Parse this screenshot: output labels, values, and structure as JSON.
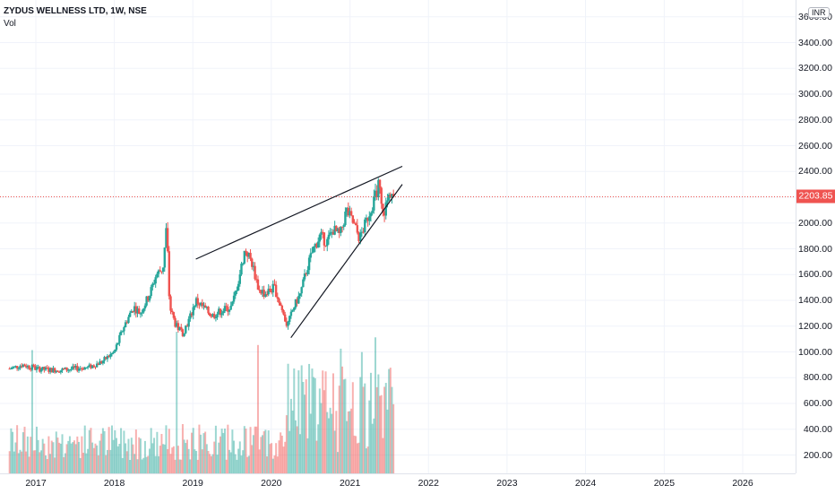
{
  "legend": {
    "symbol": "ZYDUS WELLNESS LTD, 1W, NSE",
    "volume_label": "Vol"
  },
  "currency": "INR",
  "last_price_label": "2203.85",
  "colors": {
    "up": "#26a69a",
    "down": "#ef5350",
    "last_line": "#ef5350",
    "grid": "#f0f3fa",
    "trendline": "#131722"
  },
  "chart_data": {
    "type": "candlestick",
    "title": "ZYDUS WELLNESS LTD, 1W, NSE",
    "y_ticks": [
      "200.00",
      "400.00",
      "600.00",
      "800.00",
      "1000.00",
      "1200.00",
      "1400.00",
      "1600.00",
      "1800.00",
      "2000.00",
      "2200.00",
      "2400.00",
      "2600.00",
      "2800.00",
      "3000.00",
      "3200.00",
      "3400.00",
      "3600.00"
    ],
    "ylim": [
      0,
      3650
    ],
    "x_ticks": [
      "2017",
      "2018",
      "2019",
      "2020",
      "2021",
      "2022",
      "2023",
      "2024",
      "2025",
      "2026"
    ],
    "last_price": 2203.85,
    "price_series": [
      [
        "2016-09-01",
        870
      ],
      [
        "2016-11-01",
        900
      ],
      [
        "2017-01-01",
        870
      ],
      [
        "2017-03-01",
        860
      ],
      [
        "2017-05-01",
        860
      ],
      [
        "2017-07-01",
        870
      ],
      [
        "2017-09-01",
        880
      ],
      [
        "2017-11-01",
        920
      ],
      [
        "2018-01-01",
        1000
      ],
      [
        "2018-02-15",
        1200
      ],
      [
        "2018-04-01",
        1350
      ],
      [
        "2018-05-01",
        1300
      ],
      [
        "2018-06-15",
        1450
      ],
      [
        "2018-07-15",
        1600
      ],
      [
        "2018-08-15",
        1650
      ],
      [
        "2018-09-01",
        1980
      ],
      [
        "2018-09-15",
        1350
      ],
      [
        "2018-10-15",
        1200
      ],
      [
        "2018-11-15",
        1150
      ],
      [
        "2018-12-15",
        1250
      ],
      [
        "2019-01-15",
        1400
      ],
      [
        "2019-02-15",
        1350
      ],
      [
        "2019-04-01",
        1280
      ],
      [
        "2019-05-15",
        1320
      ],
      [
        "2019-07-01",
        1350
      ],
      [
        "2019-08-01",
        1550
      ],
      [
        "2019-09-01",
        1800
      ],
      [
        "2019-10-01",
        1700
      ],
      [
        "2019-11-01",
        1500
      ],
      [
        "2019-12-01",
        1450
      ],
      [
        "2020-01-15",
        1500
      ],
      [
        "2020-02-15",
        1350
      ],
      [
        "2020-03-15",
        1200
      ],
      [
        "2020-04-15",
        1350
      ],
      [
        "2020-05-15",
        1450
      ],
      [
        "2020-06-15",
        1650
      ],
      [
        "2020-07-15",
        1800
      ],
      [
        "2020-08-15",
        1900
      ],
      [
        "2020-09-15",
        1850
      ],
      [
        "2020-10-15",
        1950
      ],
      [
        "2020-11-15",
        1900
      ],
      [
        "2020-12-15",
        2100
      ],
      [
        "2021-01-15",
        2000
      ],
      [
        "2021-02-15",
        1880
      ],
      [
        "2021-03-15",
        2000
      ],
      [
        "2021-04-15",
        2150
      ],
      [
        "2021-05-15",
        2300
      ],
      [
        "2021-06-01",
        2050
      ],
      [
        "2021-06-20",
        2150
      ],
      [
        "2021-07-10",
        2250
      ],
      [
        "2021-07-25",
        2203.85
      ]
    ],
    "volume_peak_dates": [
      "2016-12-15",
      "2018-10-15",
      "2019-11-01",
      "2021-05-01"
    ],
    "trendlines": [
      {
        "name": "upper",
        "from": [
          "2019-01-15",
          1720
        ],
        "to": [
          "2021-09-01",
          2440
        ]
      },
      {
        "name": "lower",
        "from": [
          "2020-04-01",
          1110
        ],
        "to": [
          "2021-09-01",
          2300
        ]
      }
    ]
  }
}
